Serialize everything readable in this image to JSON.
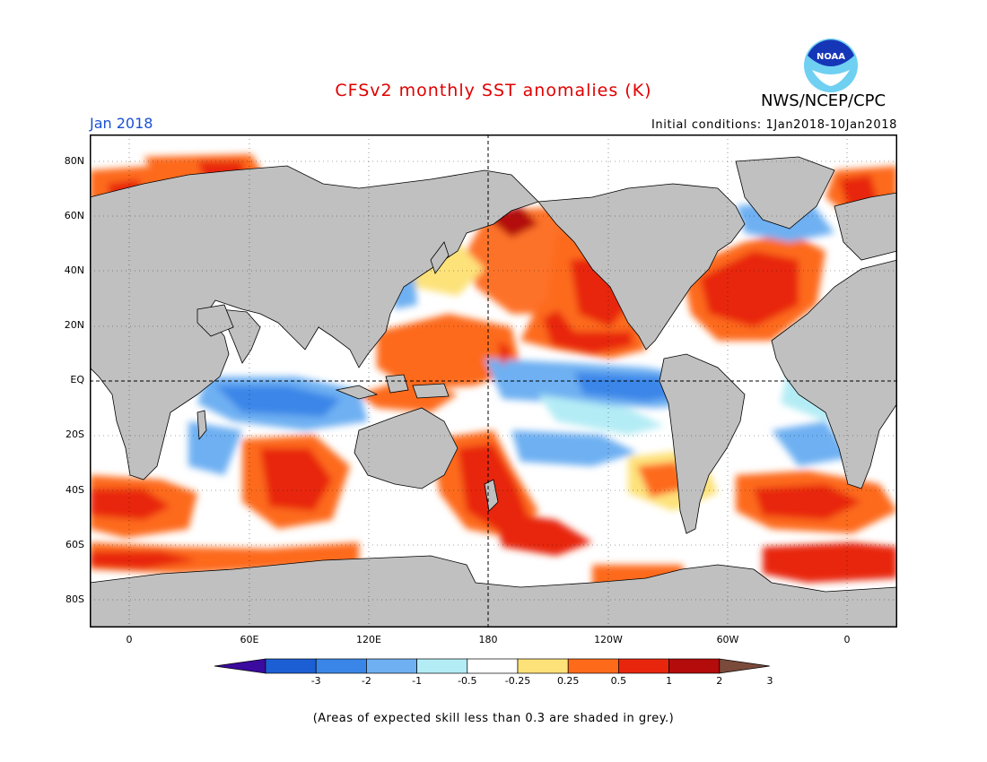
{
  "header": {
    "title": "CFSv2 monthly SST anomalies (K)",
    "organization": "NWS/NCEP/CPC",
    "logo_text": "NOAA",
    "month": "Jan 2018",
    "initial_conditions": "Initial conditions: 1Jan2018-10Jan2018"
  },
  "map": {
    "land_color": "#c0c0c0",
    "lat_labels": [
      "80N",
      "60N",
      "40N",
      "20N",
      "EQ",
      "20S",
      "40S",
      "60S",
      "80S"
    ],
    "lon_labels": [
      "0",
      "60E",
      "120E",
      "180",
      "120W",
      "60W",
      "0"
    ]
  },
  "colorbar": {
    "tick_labels": [
      "-3",
      "-2",
      "-1",
      "-0.5",
      "-0.25",
      "0.25",
      "0.5",
      "1",
      "2",
      "3"
    ],
    "colors": [
      "#3b0a9e",
      "#1c5fd4",
      "#3a86e8",
      "#6eb0f2",
      "#b4ecf5",
      "#ffffff",
      "#fde27a",
      "#fd6a1a",
      "#e8260e",
      "#b40b0b",
      "#7a4a3a"
    ]
  },
  "footnote": "(Areas of expected skill less than 0.3 are shaded in grey.)"
}
